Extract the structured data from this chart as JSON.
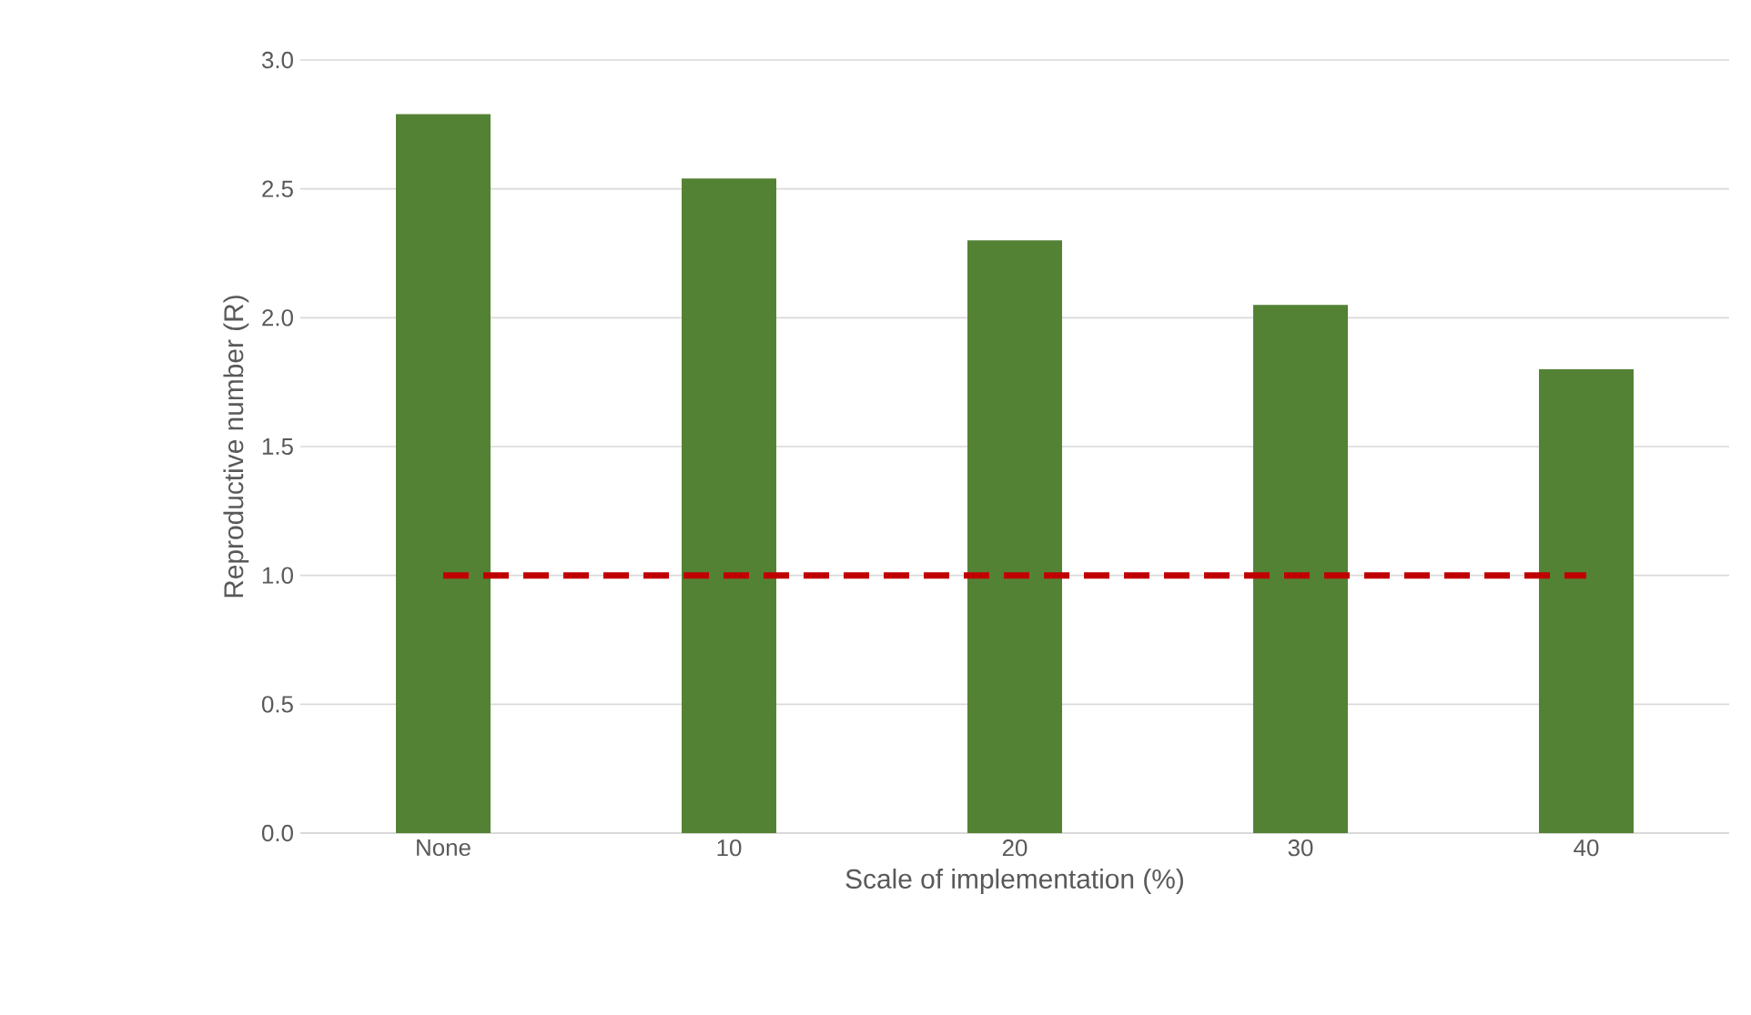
{
  "chart_data": {
    "type": "bar",
    "xlabel": "Scale of implementation (%)",
    "ylabel": "Reproductive number (R)",
    "categories": [
      "None",
      "10",
      "20",
      "30",
      "40"
    ],
    "series": [
      {
        "color": "#548235",
        "values": [
          2.79,
          2.54,
          2.3,
          2.05,
          1.8
        ]
      },
      {
        "type": "line",
        "color": "#c00000",
        "line_style": "dashed",
        "marker": "none",
        "values": [
          1,
          1,
          1,
          1,
          1
        ]
      }
    ],
    "ylim": [
      0,
      3
    ],
    "yticks": [
      {
        "value": 0,
        "label": "0.0"
      },
      {
        "value": 0.5,
        "label": "0.5"
      },
      {
        "value": 1,
        "label": "1.0"
      },
      {
        "value": 1.5,
        "label": "1.5"
      },
      {
        "value": 2,
        "label": "2.0"
      },
      {
        "value": 2.5,
        "label": "2.5"
      },
      {
        "value": 3,
        "label": "3.0"
      }
    ],
    "grid": "y"
  }
}
